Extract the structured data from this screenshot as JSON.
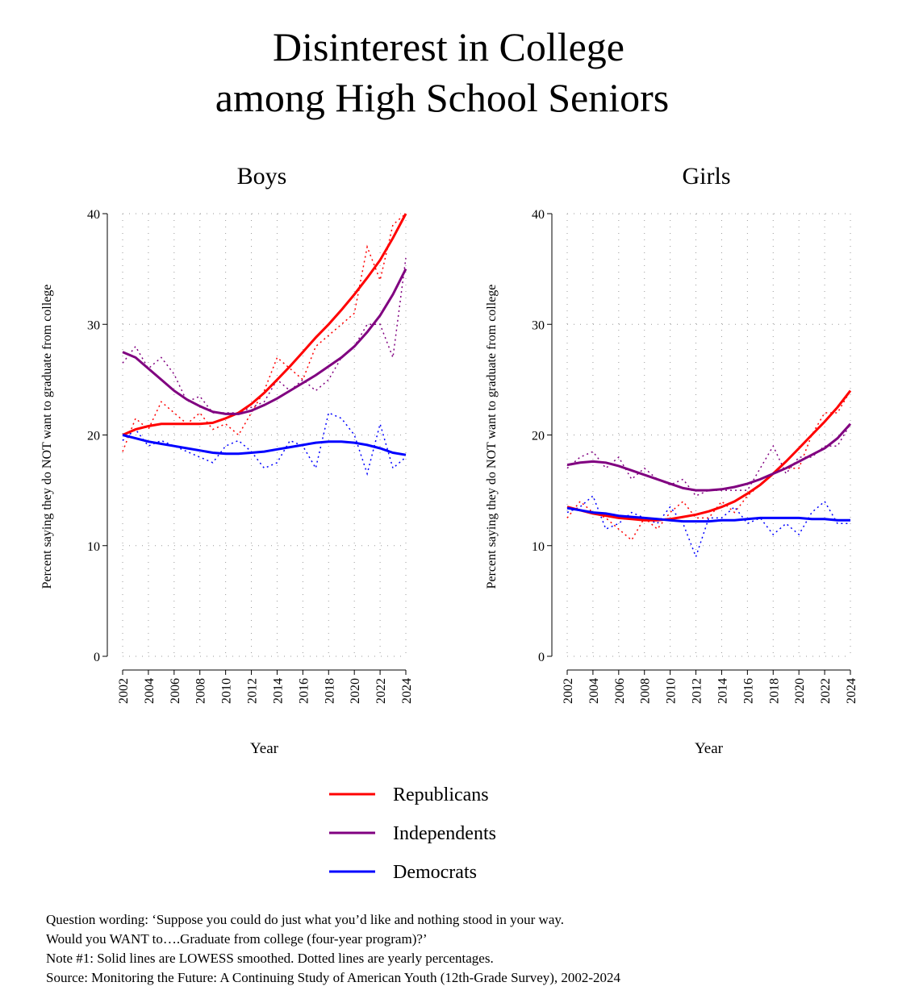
{
  "title": [
    "Disinterest in College",
    "among High School Seniors"
  ],
  "notes": [
    "Question wording: ‘Suppose you could do just what you’d like and nothing stood in your way.",
    "Would you WANT to….Graduate from college (four-year program)?’",
    "Note #1: Solid lines are LOWESS smoothed. Dotted lines are yearly percentages.",
    "Source: Monitoring the Future: A Continuing Study of American Youth (12th-Grade Survey), 2002-2024"
  ],
  "chart_data": [
    {
      "type": "line",
      "title": "Boys",
      "x_label": "Year",
      "y_label": "Percent saying they do NOT want to graduate from college",
      "x": [
        2002,
        2003,
        2004,
        2005,
        2006,
        2007,
        2008,
        2009,
        2010,
        2011,
        2012,
        2013,
        2014,
        2015,
        2016,
        2017,
        2018,
        2019,
        2020,
        2021,
        2022,
        2023,
        2024
      ],
      "xlim": [
        2002,
        2024
      ],
      "xticks": [
        2002,
        2004,
        2006,
        2008,
        2010,
        2012,
        2014,
        2016,
        2018,
        2020,
        2022,
        2024
      ],
      "ylim": [
        0,
        40
      ],
      "yticks": [
        0,
        10,
        20,
        30,
        40
      ],
      "grid": true,
      "series": [
        {
          "name": "Republicans",
          "color": "#ff0000",
          "values": [
            20,
            20.5,
            20.8,
            21,
            21,
            21,
            21,
            21.1,
            21.5,
            22,
            22.8,
            23.8,
            25,
            26.2,
            27.5,
            28.8,
            30,
            31.3,
            32.7,
            34.2,
            35.8,
            37.8,
            40
          ],
          "yearly": [
            18.5,
            21.5,
            20.5,
            23,
            22,
            21,
            22,
            20.5,
            21,
            20,
            22,
            24,
            27,
            26,
            25,
            28,
            29,
            30,
            31,
            37,
            34,
            39,
            40
          ]
        },
        {
          "name": "Independents",
          "color": "#800080",
          "values": [
            27.5,
            27,
            26,
            25,
            24,
            23.2,
            22.6,
            22.1,
            21.9,
            21.9,
            22.2,
            22.7,
            23.3,
            24,
            24.7,
            25.4,
            26.2,
            27,
            28,
            29.3,
            30.8,
            32.7,
            35
          ],
          "yearly": [
            26.5,
            28,
            26,
            27,
            25.5,
            23,
            23.5,
            22,
            22,
            22,
            22.5,
            23,
            25,
            24,
            25,
            24,
            25,
            27,
            28,
            30,
            30,
            27,
            36
          ]
        },
        {
          "name": "Democrats",
          "color": "#0000ff",
          "values": [
            20,
            19.7,
            19.4,
            19.2,
            19,
            18.8,
            18.6,
            18.4,
            18.3,
            18.3,
            18.4,
            18.5,
            18.7,
            18.9,
            19.1,
            19.3,
            19.4,
            19.4,
            19.3,
            19.1,
            18.8,
            18.4,
            18.2
          ],
          "yearly": [
            19.5,
            20.5,
            19,
            19.5,
            19,
            18.5,
            18,
            17.5,
            19,
            19.5,
            18.5,
            17,
            17.5,
            19.5,
            19,
            17,
            22,
            21.5,
            20,
            16.5,
            21,
            17,
            18
          ]
        }
      ]
    },
    {
      "type": "line",
      "title": "Girls",
      "x_label": "Year",
      "y_label": "Percent saying they do NOT want to graduate from college",
      "x": [
        2002,
        2003,
        2004,
        2005,
        2006,
        2007,
        2008,
        2009,
        2010,
        2011,
        2012,
        2013,
        2014,
        2015,
        2016,
        2017,
        2018,
        2019,
        2020,
        2021,
        2022,
        2023,
        2024
      ],
      "xlim": [
        2002,
        2024
      ],
      "xticks": [
        2002,
        2004,
        2006,
        2008,
        2010,
        2012,
        2014,
        2016,
        2018,
        2020,
        2022,
        2024
      ],
      "ylim": [
        0,
        40
      ],
      "yticks": [
        0,
        10,
        20,
        30,
        40
      ],
      "grid": true,
      "series": [
        {
          "name": "Republicans",
          "color": "#ff0000",
          "values": [
            13.5,
            13.2,
            12.9,
            12.7,
            12.5,
            12.4,
            12.3,
            12.3,
            12.4,
            12.6,
            12.8,
            13.1,
            13.5,
            14,
            14.7,
            15.5,
            16.5,
            17.6,
            18.8,
            20,
            21.2,
            22.5,
            24
          ],
          "yearly": [
            12.5,
            14,
            13,
            12.5,
            11.5,
            10.5,
            12.5,
            11.5,
            13,
            14,
            12.5,
            12.5,
            14,
            13,
            14.5,
            15.5,
            16.5,
            17,
            17,
            20,
            22,
            22,
            24
          ]
        },
        {
          "name": "Independents",
          "color": "#800080",
          "values": [
            17.3,
            17.5,
            17.6,
            17.5,
            17.2,
            16.8,
            16.4,
            16,
            15.6,
            15.2,
            15,
            15,
            15.1,
            15.3,
            15.6,
            16,
            16.5,
            17,
            17.6,
            18.2,
            18.8,
            19.7,
            21
          ],
          "yearly": [
            17,
            18,
            18.5,
            17,
            18,
            16,
            17,
            16,
            15.5,
            16,
            14.5,
            15,
            15,
            15,
            15,
            17,
            19,
            16.5,
            18,
            18,
            19,
            19,
            21
          ]
        },
        {
          "name": "Democrats",
          "color": "#0000ff",
          "values": [
            13.4,
            13.2,
            13,
            12.9,
            12.7,
            12.6,
            12.5,
            12.4,
            12.3,
            12.2,
            12.2,
            12.2,
            12.3,
            12.3,
            12.4,
            12.5,
            12.5,
            12.5,
            12.5,
            12.4,
            12.4,
            12.3,
            12.3
          ],
          "yearly": [
            13,
            13.5,
            14.5,
            11.5,
            12,
            13,
            12.5,
            12,
            13.5,
            12,
            9,
            12.5,
            12.5,
            13.5,
            12,
            12.5,
            11,
            12,
            11,
            13,
            14,
            12,
            12
          ]
        }
      ]
    }
  ]
}
